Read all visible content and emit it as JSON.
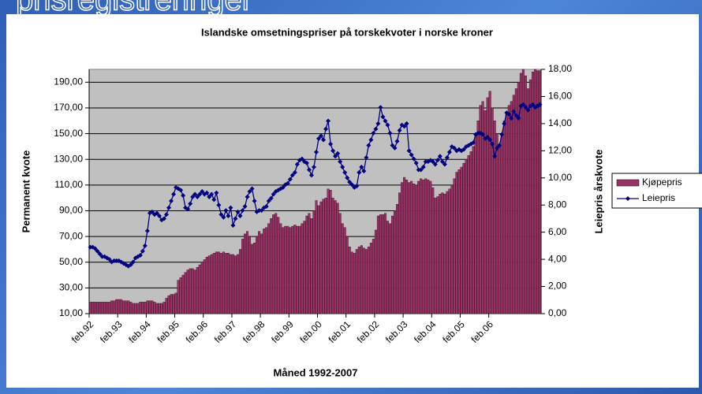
{
  "slide_title": "prisregistreringer",
  "chart_data": {
    "type": "combo",
    "title": "Islandske omsetningspriser på torskekvoter i norske kroner",
    "x_label": "Måned 1992-2007",
    "y_label": "Permanent kvote",
    "y2_label": "Leiepris årskvote",
    "legend": "right",
    "grid": true,
    "plot_background": "#c0c0c0",
    "categories": [
      "feb.92",
      null,
      null,
      null,
      null,
      null,
      null,
      null,
      null,
      null,
      null,
      null,
      "feb.93",
      null,
      null,
      null,
      null,
      null,
      null,
      null,
      null,
      null,
      null,
      null,
      "feb.94",
      null,
      null,
      null,
      null,
      null,
      null,
      null,
      null,
      null,
      null,
      null,
      "feb.95",
      null,
      null,
      null,
      null,
      null,
      null,
      null,
      null,
      null,
      null,
      null,
      "feb.96",
      null,
      null,
      null,
      null,
      null,
      null,
      null,
      null,
      null,
      null,
      null,
      "feb.97",
      null,
      null,
      null,
      null,
      null,
      null,
      null,
      null,
      null,
      null,
      null,
      "feb.98",
      null,
      null,
      null,
      null,
      null,
      null,
      null,
      null,
      null,
      null,
      null,
      "feb.99",
      null,
      null,
      null,
      null,
      null,
      null,
      null,
      null,
      null,
      null,
      null,
      "feb.00",
      null,
      null,
      null,
      null,
      null,
      null,
      null,
      null,
      null,
      null,
      null,
      "feb.01",
      null,
      null,
      null,
      null,
      null,
      null,
      null,
      null,
      null,
      null,
      null,
      "feb.02",
      null,
      null,
      null,
      null,
      null,
      null,
      null,
      null,
      null,
      null,
      null,
      "feb.03",
      null,
      null,
      null,
      null,
      null,
      null,
      null,
      null,
      null,
      null,
      null,
      "feb.04",
      null,
      null,
      null,
      null,
      null,
      null,
      null,
      null,
      null,
      null,
      null,
      "feb.05",
      null,
      null,
      null,
      null,
      null,
      null,
      null,
      null,
      null,
      null,
      null,
      "feb.06",
      null,
      null,
      null,
      null,
      null,
      null,
      null,
      null,
      null,
      null,
      null,
      null,
      null,
      null,
      null,
      null,
      null,
      null,
      null,
      null,
      null
    ],
    "ylim": [
      10,
      200
    ],
    "yticks": [
      {
        "value": 10,
        "label": "10,00"
      },
      {
        "value": 30,
        "label": "30,00"
      },
      {
        "value": 50,
        "label": "50,00"
      },
      {
        "value": 70,
        "label": "70,00"
      },
      {
        "value": 90,
        "label": "90,00"
      },
      {
        "value": 110,
        "label": "110,00"
      },
      {
        "value": 130,
        "label": "130,00"
      },
      {
        "value": 150,
        "label": "150,00"
      },
      {
        "value": 170,
        "label": "170,00"
      },
      {
        "value": 190,
        "label": "190,00"
      }
    ],
    "y2lim": [
      0,
      18
    ],
    "y2ticks": [
      {
        "value": 0,
        "label": "0,00"
      },
      {
        "value": 2,
        "label": "2,00"
      },
      {
        "value": 4,
        "label": "4,00"
      },
      {
        "value": 6,
        "label": "6,00"
      },
      {
        "value": 8,
        "label": "8,00"
      },
      {
        "value": 10,
        "label": "10,00"
      },
      {
        "value": 12,
        "label": "12,00"
      },
      {
        "value": 14,
        "label": "14,00"
      },
      {
        "value": 16,
        "label": "16,00"
      },
      {
        "value": 18,
        "label": "18,00"
      }
    ],
    "series": [
      {
        "name": "Kjøpepris",
        "type": "bar",
        "color": "#993366",
        "values": [
          19,
          19,
          19,
          19,
          19,
          19,
          19,
          19,
          19,
          20,
          20,
          21,
          21,
          21,
          20,
          20,
          20,
          19,
          18,
          18,
          18,
          19,
          19,
          19,
          20,
          20,
          20,
          19,
          18,
          18,
          18,
          19,
          22,
          24,
          25,
          25,
          26,
          36,
          38,
          40,
          42,
          44,
          45,
          45,
          44,
          46,
          48,
          50,
          52,
          54,
          55,
          56,
          57,
          58,
          58,
          57,
          58,
          57,
          57,
          56,
          56,
          55,
          56,
          60,
          68,
          72,
          74,
          70,
          64,
          65,
          70,
          74,
          72,
          76,
          77,
          80,
          84,
          87,
          88,
          85,
          80,
          77,
          78,
          78,
          77,
          78,
          79,
          78,
          78,
          80,
          82,
          86,
          88,
          84,
          90,
          98,
          94,
          97,
          99,
          100,
          107,
          106,
          100,
          98,
          96,
          88,
          80,
          77,
          70,
          62,
          58,
          57,
          60,
          62,
          63,
          61,
          60,
          62,
          65,
          68,
          75,
          86,
          87,
          87,
          88,
          82,
          80,
          86,
          90,
          95,
          104,
          112,
          116,
          114,
          112,
          113,
          111,
          110,
          113,
          115,
          114,
          115,
          114,
          113,
          108,
          100,
          101,
          103,
          104,
          103,
          105,
          107,
          110,
          115,
          120,
          122,
          124,
          127,
          130,
          133,
          136,
          140,
          150,
          160,
          172,
          175,
          168,
          178,
          183,
          170,
          160,
          150,
          140,
          148,
          160,
          165,
          172,
          175,
          180,
          185,
          190,
          197,
          200,
          195,
          185,
          192,
          198,
          200,
          199,
          199
        ]
      },
      {
        "name": "Leiepris",
        "type": "line",
        "axis": "y2",
        "color": "#000080",
        "values": [
          4.9,
          4.9,
          4.8,
          4.6,
          4.4,
          4.2,
          4.2,
          4.1,
          4.0,
          3.8,
          3.9,
          3.9,
          3.9,
          3.8,
          3.7,
          3.6,
          3.5,
          3.6,
          3.8,
          4.1,
          4.2,
          4.3,
          4.6,
          5.0,
          6.1,
          7.4,
          7.5,
          7.3,
          7.4,
          7.2,
          6.9,
          7.0,
          7.3,
          7.8,
          8.3,
          8.8,
          9.3,
          9.2,
          9.1,
          8.7,
          7.8,
          7.7,
          8.1,
          8.6,
          8.8,
          8.6,
          8.8,
          9.0,
          8.8,
          8.9,
          8.6,
          8.8,
          8.4,
          8.9,
          8.0,
          7.3,
          7.1,
          7.6,
          7.2,
          7.8,
          6.5,
          7.0,
          7.5,
          7.2,
          7.6,
          7.9,
          8.6,
          9.0,
          9.2,
          8.3,
          7.5,
          7.6,
          7.6,
          7.8,
          7.9,
          8.3,
          8.5,
          8.8,
          9.0,
          9.1,
          9.2,
          9.3,
          9.5,
          9.6,
          9.9,
          10.2,
          10.4,
          11.0,
          11.3,
          11.4,
          11.2,
          11.1,
          10.6,
          10.2,
          10.8,
          11.9,
          12.9,
          13.1,
          12.8,
          13.6,
          14.2,
          12.5,
          12.0,
          11.6,
          11.8,
          11.2,
          10.8,
          10.4,
          10.0,
          9.7,
          9.5,
          9.3,
          9.4,
          10.4,
          10.8,
          10.5,
          11.5,
          12.4,
          12.8,
          13.3,
          13.6,
          14.0,
          15.2,
          14.5,
          14.2,
          13.9,
          13.3,
          12.4,
          12.2,
          12.7,
          13.5,
          13.9,
          13.8,
          14.0,
          12.0,
          11.7,
          11.4,
          11.1,
          10.6,
          10.6,
          10.8,
          11.2,
          11.2,
          11.3,
          11.2,
          11.0,
          11.3,
          11.6,
          11.2,
          11.0,
          11.5,
          11.9,
          12.3,
          12.2,
          12.0,
          12.1,
          12.0,
          12.1,
          12.3,
          12.4,
          12.5,
          12.6,
          13.2,
          13.3,
          13.3,
          13.2,
          12.9,
          13.0,
          12.8,
          12.5,
          11.6,
          12.2,
          12.4,
          13.2,
          14.0,
          14.8,
          14.7,
          14.4,
          14.9,
          14.6,
          14.4,
          15.3,
          15.4,
          15.2,
          15.0,
          15.3,
          15.4,
          15.2,
          15.3,
          15.4
        ]
      }
    ]
  }
}
